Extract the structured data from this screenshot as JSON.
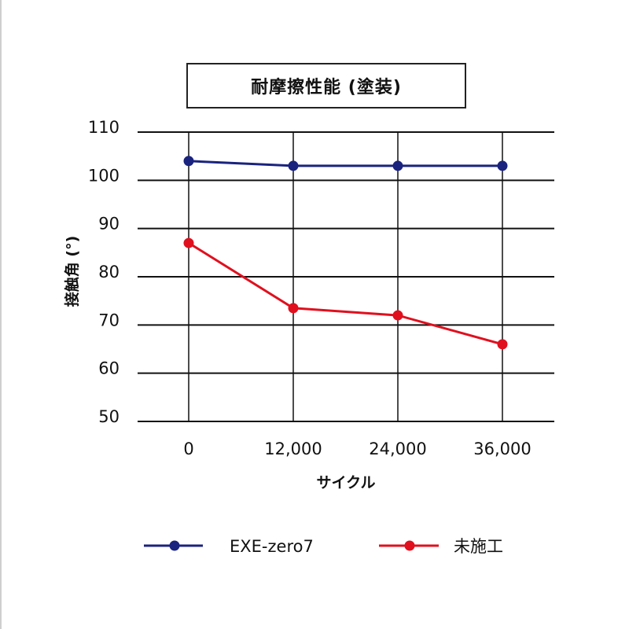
{
  "chart_data": {
    "type": "line",
    "title": "耐摩擦性能 (塗装)",
    "xlabel": "サイクル",
    "ylabel": "接触角 (°)",
    "categories": [
      "0",
      "12,000",
      "24,000",
      "36,000"
    ],
    "yticks": [
      "110",
      "100",
      "90",
      "80",
      "70",
      "60",
      "50"
    ],
    "ylim": [
      50,
      110
    ],
    "grid": true,
    "legend_position": "bottom",
    "series": [
      {
        "name": "EXE-zero7",
        "color": "#1a237e",
        "values": [
          104,
          103,
          103,
          103
        ]
      },
      {
        "name": "未施工",
        "color": "#e0101e",
        "values": [
          87,
          73.5,
          72,
          66
        ]
      }
    ]
  }
}
